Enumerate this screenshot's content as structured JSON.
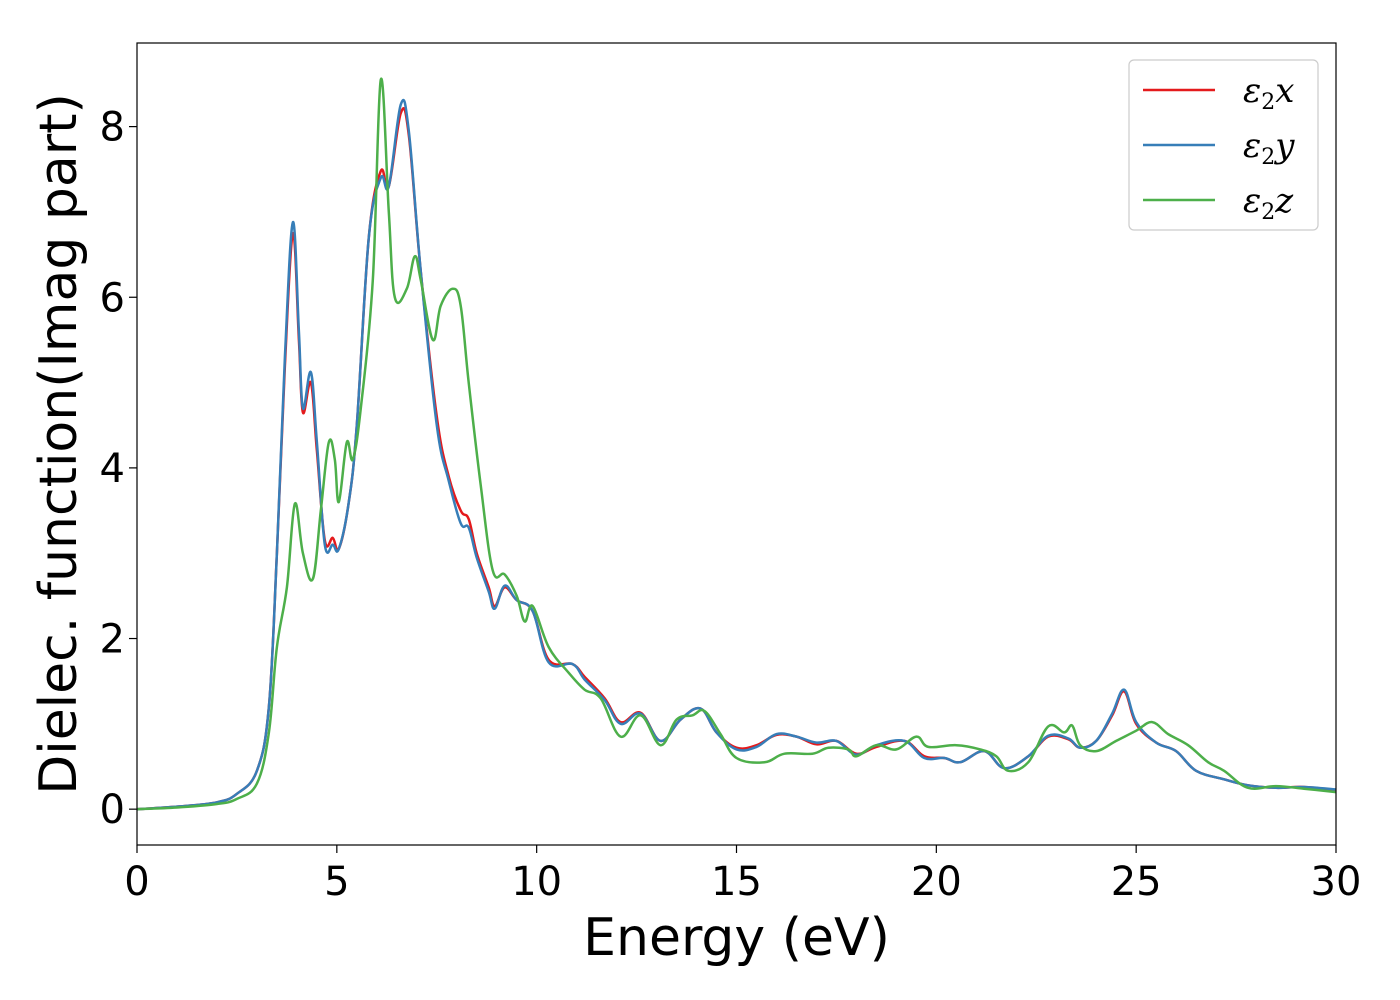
{
  "chart_data": {
    "type": "line",
    "title": "",
    "xlabel": "Energy (eV)",
    "ylabel": "Dielec. function(Imag part)",
    "xlim": [
      0,
      30
    ],
    "ylim": [
      -0.42,
      8.98
    ],
    "xticks": [
      0,
      5,
      10,
      15,
      20,
      25,
      30
    ],
    "yticks": [
      0,
      2,
      4,
      6,
      8
    ],
    "xtick_labels": [
      "0",
      "5",
      "10",
      "15",
      "20",
      "25",
      "30"
    ],
    "ytick_labels": [
      "0",
      "2",
      "4",
      "6",
      "8"
    ],
    "grid": false,
    "legend_position": "top-right",
    "series": [
      {
        "name": "ε2x",
        "legend_base": "ε",
        "legend_sub": "2",
        "legend_var": "x",
        "color": "#e41a1c",
        "points": [
          [
            0,
            0.0
          ],
          [
            1,
            0.03
          ],
          [
            2,
            0.08
          ],
          [
            2.5,
            0.18
          ],
          [
            3,
            0.45
          ],
          [
            3.3,
            1.2
          ],
          [
            3.5,
            3.0
          ],
          [
            3.7,
            5.2
          ],
          [
            3.9,
            6.75
          ],
          [
            4.05,
            5.5
          ],
          [
            4.15,
            4.65
          ],
          [
            4.35,
            5.0
          ],
          [
            4.5,
            4.2
          ],
          [
            4.7,
            3.15
          ],
          [
            4.9,
            3.18
          ],
          [
            5.05,
            3.05
          ],
          [
            5.3,
            3.6
          ],
          [
            5.5,
            4.5
          ],
          [
            5.8,
            6.7
          ],
          [
            6.1,
            7.48
          ],
          [
            6.3,
            7.3
          ],
          [
            6.6,
            8.16
          ],
          [
            6.8,
            7.9
          ],
          [
            7.1,
            6.3
          ],
          [
            7.5,
            4.6
          ],
          [
            7.8,
            3.9
          ],
          [
            8.1,
            3.5
          ],
          [
            8.3,
            3.4
          ],
          [
            8.5,
            3.0
          ],
          [
            8.8,
            2.6
          ],
          [
            8.95,
            2.38
          ],
          [
            9.2,
            2.6
          ],
          [
            9.5,
            2.45
          ],
          [
            9.9,
            2.32
          ],
          [
            10.3,
            1.75
          ],
          [
            10.9,
            1.7
          ],
          [
            11.2,
            1.55
          ],
          [
            11.7,
            1.3
          ],
          [
            12.1,
            1.02
          ],
          [
            12.6,
            1.13
          ],
          [
            13.1,
            0.8
          ],
          [
            13.6,
            1.05
          ],
          [
            14.1,
            1.18
          ],
          [
            14.5,
            0.9
          ],
          [
            15,
            0.72
          ],
          [
            15.5,
            0.75
          ],
          [
            16.0,
            0.87
          ],
          [
            16.5,
            0.85
          ],
          [
            17.0,
            0.76
          ],
          [
            17.5,
            0.8
          ],
          [
            18,
            0.65
          ],
          [
            18.5,
            0.73
          ],
          [
            19.2,
            0.8
          ],
          [
            19.7,
            0.62
          ],
          [
            20.2,
            0.6
          ],
          [
            20.6,
            0.55
          ],
          [
            21.2,
            0.68
          ],
          [
            21.7,
            0.48
          ],
          [
            22.3,
            0.62
          ],
          [
            22.8,
            0.85
          ],
          [
            23.3,
            0.82
          ],
          [
            23.6,
            0.72
          ],
          [
            24.0,
            0.8
          ],
          [
            24.4,
            1.1
          ],
          [
            24.7,
            1.38
          ],
          [
            25.0,
            1.0
          ],
          [
            25.5,
            0.78
          ],
          [
            26.0,
            0.68
          ],
          [
            26.5,
            0.45
          ],
          [
            27.2,
            0.35
          ],
          [
            27.8,
            0.28
          ],
          [
            28.5,
            0.25
          ],
          [
            29.2,
            0.26
          ],
          [
            30,
            0.22
          ]
        ]
      },
      {
        "name": "ε2y",
        "legend_base": "ε",
        "legend_sub": "2",
        "legend_var": "y",
        "color": "#377eb8",
        "points": [
          [
            0,
            0.0
          ],
          [
            1,
            0.03
          ],
          [
            2,
            0.08
          ],
          [
            2.5,
            0.18
          ],
          [
            3,
            0.45
          ],
          [
            3.3,
            1.2
          ],
          [
            3.5,
            3.0
          ],
          [
            3.7,
            5.3
          ],
          [
            3.9,
            6.88
          ],
          [
            4.05,
            5.6
          ],
          [
            4.15,
            4.7
          ],
          [
            4.35,
            5.12
          ],
          [
            4.5,
            4.3
          ],
          [
            4.7,
            3.1
          ],
          [
            4.9,
            3.1
          ],
          [
            5.05,
            3.05
          ],
          [
            5.3,
            3.6
          ],
          [
            5.5,
            4.5
          ],
          [
            5.8,
            6.7
          ],
          [
            6.1,
            7.4
          ],
          [
            6.3,
            7.3
          ],
          [
            6.6,
            8.26
          ],
          [
            6.8,
            7.95
          ],
          [
            7.1,
            6.3
          ],
          [
            7.5,
            4.5
          ],
          [
            7.8,
            3.85
          ],
          [
            8.1,
            3.35
          ],
          [
            8.3,
            3.3
          ],
          [
            8.5,
            2.95
          ],
          [
            8.8,
            2.55
          ],
          [
            8.95,
            2.35
          ],
          [
            9.2,
            2.62
          ],
          [
            9.5,
            2.45
          ],
          [
            9.9,
            2.32
          ],
          [
            10.3,
            1.72
          ],
          [
            10.9,
            1.7
          ],
          [
            11.2,
            1.52
          ],
          [
            11.7,
            1.28
          ],
          [
            12.1,
            1.0
          ],
          [
            12.6,
            1.12
          ],
          [
            13.1,
            0.8
          ],
          [
            13.6,
            1.05
          ],
          [
            14.1,
            1.18
          ],
          [
            14.5,
            0.9
          ],
          [
            15,
            0.7
          ],
          [
            15.5,
            0.73
          ],
          [
            16.0,
            0.88
          ],
          [
            16.5,
            0.85
          ],
          [
            17.0,
            0.78
          ],
          [
            17.5,
            0.8
          ],
          [
            18,
            0.64
          ],
          [
            18.5,
            0.75
          ],
          [
            19.2,
            0.8
          ],
          [
            19.7,
            0.6
          ],
          [
            20.2,
            0.6
          ],
          [
            20.6,
            0.55
          ],
          [
            21.2,
            0.68
          ],
          [
            21.7,
            0.48
          ],
          [
            22.3,
            0.62
          ],
          [
            22.8,
            0.86
          ],
          [
            23.3,
            0.83
          ],
          [
            23.6,
            0.72
          ],
          [
            24.0,
            0.8
          ],
          [
            24.4,
            1.12
          ],
          [
            24.7,
            1.4
          ],
          [
            25.0,
            1.02
          ],
          [
            25.5,
            0.78
          ],
          [
            26.0,
            0.68
          ],
          [
            26.5,
            0.45
          ],
          [
            27.2,
            0.35
          ],
          [
            27.8,
            0.28
          ],
          [
            28.5,
            0.25
          ],
          [
            29.2,
            0.26
          ],
          [
            30,
            0.23
          ]
        ]
      },
      {
        "name": "ε2z",
        "legend_base": "ε",
        "legend_sub": "2",
        "legend_var": "z",
        "color": "#4daf4a",
        "points": [
          [
            0,
            0.0
          ],
          [
            1,
            0.02
          ],
          [
            2,
            0.06
          ],
          [
            2.5,
            0.12
          ],
          [
            3,
            0.3
          ],
          [
            3.3,
            0.9
          ],
          [
            3.5,
            1.9
          ],
          [
            3.75,
            2.6
          ],
          [
            3.95,
            3.58
          ],
          [
            4.15,
            3.0
          ],
          [
            4.4,
            2.7
          ],
          [
            4.6,
            3.5
          ],
          [
            4.8,
            4.3
          ],
          [
            4.95,
            4.1
          ],
          [
            5.05,
            3.6
          ],
          [
            5.25,
            4.3
          ],
          [
            5.4,
            4.1
          ],
          [
            5.6,
            4.7
          ],
          [
            5.9,
            6.2
          ],
          [
            6.1,
            8.55
          ],
          [
            6.3,
            7.0
          ],
          [
            6.45,
            6.0
          ],
          [
            6.75,
            6.1
          ],
          [
            6.95,
            6.48
          ],
          [
            7.1,
            6.2
          ],
          [
            7.4,
            5.5
          ],
          [
            7.6,
            5.9
          ],
          [
            7.9,
            6.1
          ],
          [
            8.1,
            5.9
          ],
          [
            8.3,
            5.0
          ],
          [
            8.6,
            3.8
          ],
          [
            8.9,
            2.8
          ],
          [
            9.2,
            2.75
          ],
          [
            9.5,
            2.5
          ],
          [
            9.7,
            2.2
          ],
          [
            9.9,
            2.38
          ],
          [
            10.3,
            1.9
          ],
          [
            10.8,
            1.6
          ],
          [
            11.2,
            1.4
          ],
          [
            11.6,
            1.3
          ],
          [
            12.1,
            0.85
          ],
          [
            12.6,
            1.1
          ],
          [
            13.1,
            0.75
          ],
          [
            13.5,
            1.05
          ],
          [
            13.9,
            1.1
          ],
          [
            14.2,
            1.15
          ],
          [
            14.6,
            0.88
          ],
          [
            15,
            0.6
          ],
          [
            15.7,
            0.55
          ],
          [
            16.2,
            0.65
          ],
          [
            16.9,
            0.65
          ],
          [
            17.3,
            0.72
          ],
          [
            17.8,
            0.7
          ],
          [
            18,
            0.62
          ],
          [
            18.5,
            0.75
          ],
          [
            19.0,
            0.7
          ],
          [
            19.5,
            0.85
          ],
          [
            19.8,
            0.73
          ],
          [
            20.5,
            0.75
          ],
          [
            21.1,
            0.7
          ],
          [
            21.5,
            0.62
          ],
          [
            21.8,
            0.45
          ],
          [
            22.3,
            0.55
          ],
          [
            22.8,
            0.97
          ],
          [
            23.2,
            0.9
          ],
          [
            23.4,
            0.98
          ],
          [
            23.6,
            0.75
          ],
          [
            24.0,
            0.68
          ],
          [
            24.5,
            0.8
          ],
          [
            25.0,
            0.92
          ],
          [
            25.4,
            1.02
          ],
          [
            25.8,
            0.88
          ],
          [
            26.3,
            0.75
          ],
          [
            26.8,
            0.55
          ],
          [
            27.2,
            0.45
          ],
          [
            27.8,
            0.25
          ],
          [
            28.5,
            0.27
          ],
          [
            29.2,
            0.24
          ],
          [
            30,
            0.2
          ]
        ]
      }
    ]
  }
}
